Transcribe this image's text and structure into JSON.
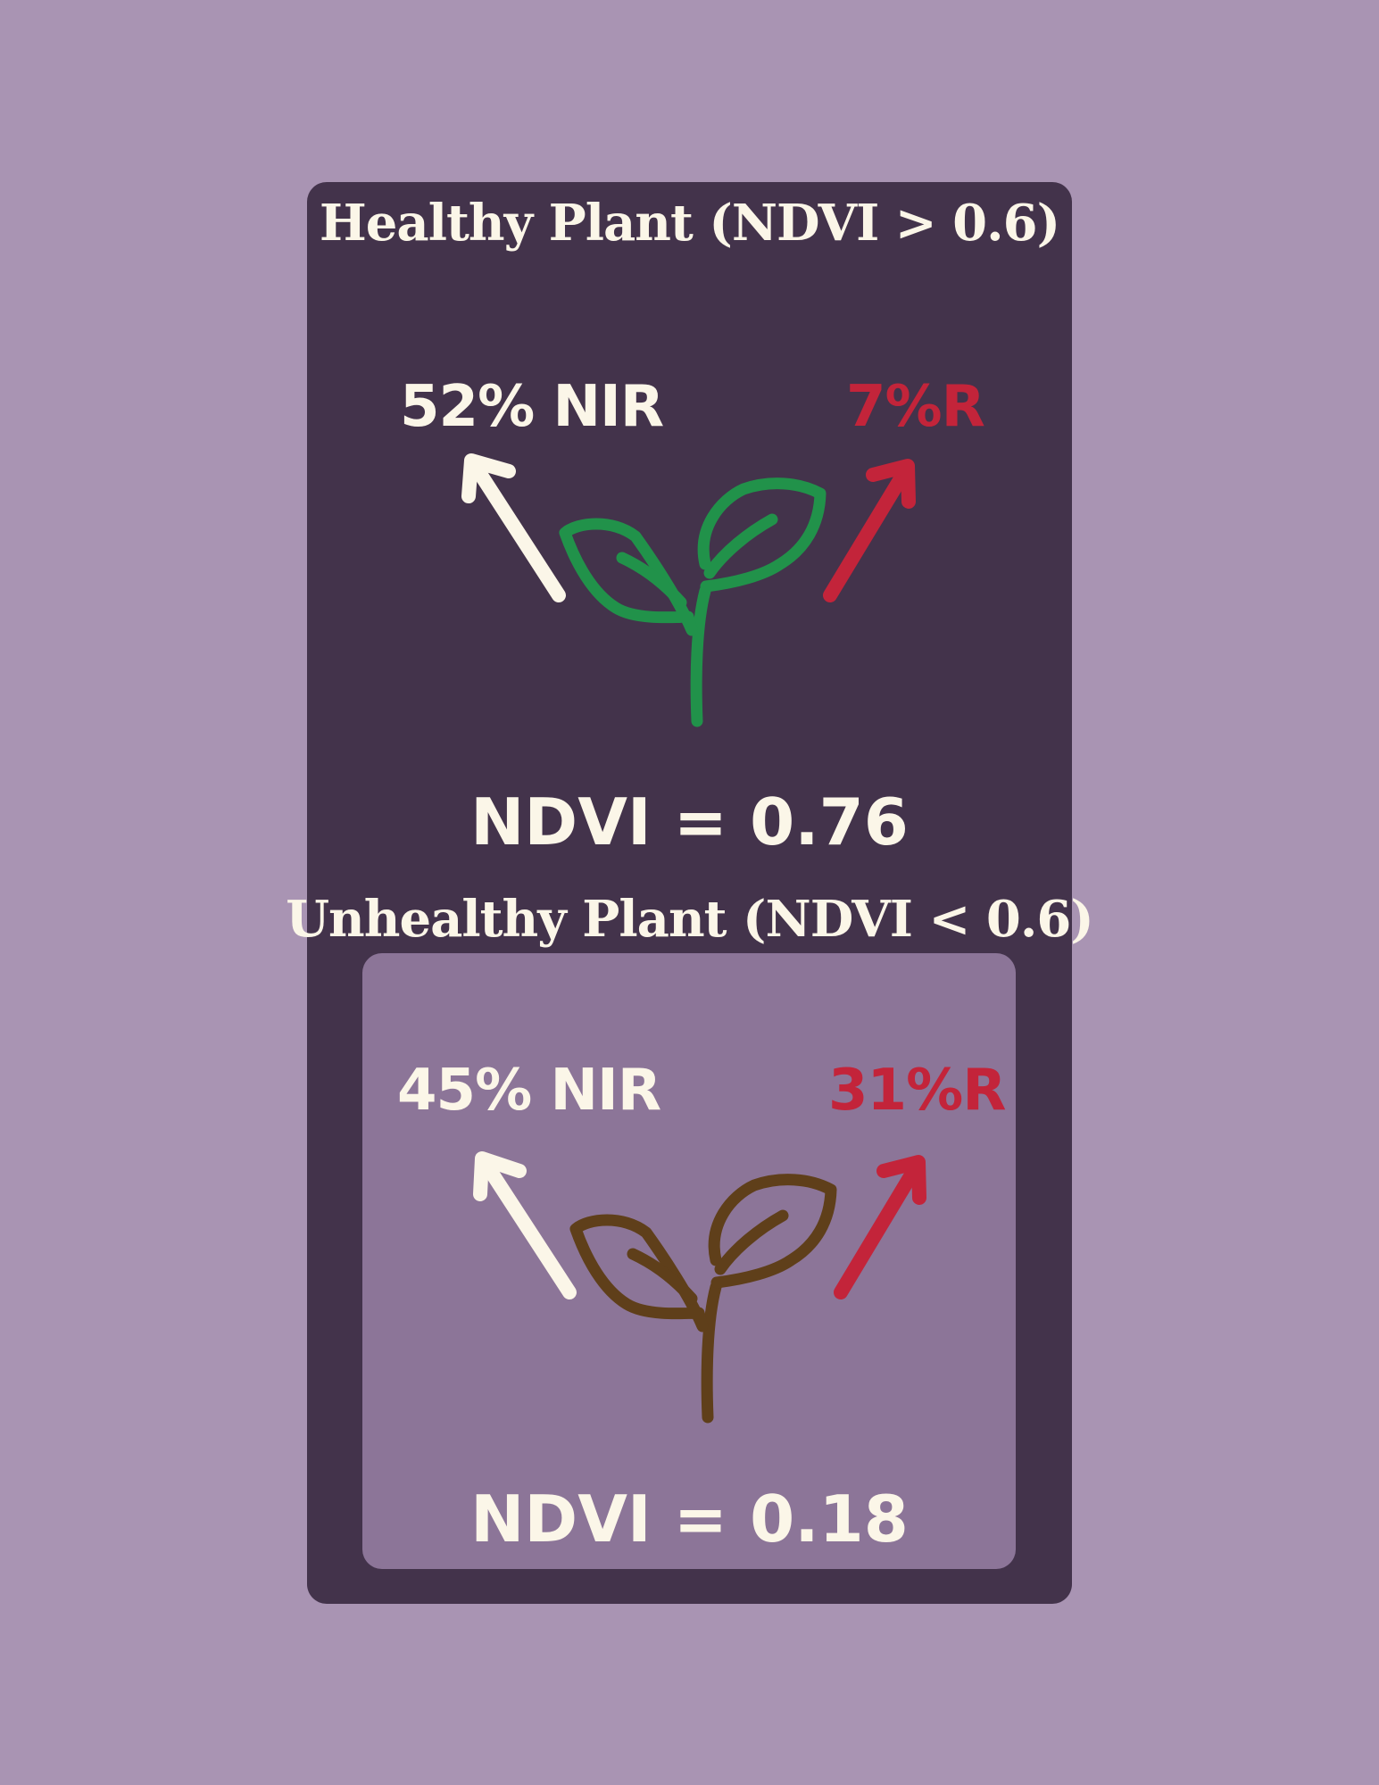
{
  "healthy": {
    "title": "Healthy Plant (NDVI > 0.6)",
    "nir_label": "52% NIR",
    "red_label": "7%R",
    "ndvi_label": "NDVI = 0.76",
    "plant_color": "#21924a"
  },
  "unhealthy": {
    "title": "Unhealthy Plant (NDVI < 0.6)",
    "nir_label": "45% NIR",
    "red_label": "31%R",
    "ndvi_label": "NDVI = 0.18",
    "plant_color": "#5f3f1a"
  },
  "colors": {
    "background": "#a994b3",
    "card": "#43334b",
    "inner_panel": "#8c7598",
    "text": "#fbf6e8",
    "red_reflectance": "#c3243a"
  },
  "icons": [
    "nir-arrow-icon",
    "red-arrow-icon",
    "seedling-icon"
  ]
}
